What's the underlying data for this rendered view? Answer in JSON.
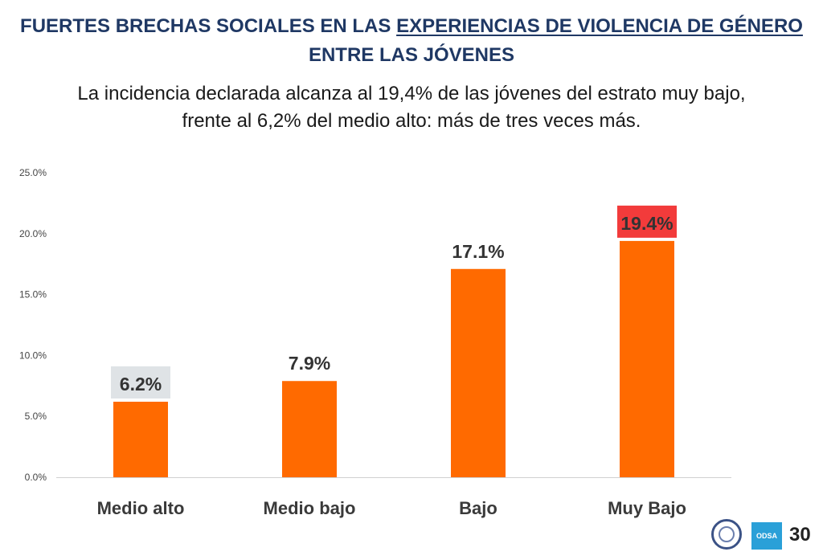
{
  "header": {
    "title_line1_plain": "FUERTES BRECHAS SOCIALES EN LAS ",
    "title_line1_underlined": "EXPERIENCIAS DE VIOLENCIA DE GÉNERO",
    "title_line2": "ENTRE LAS JÓVENES",
    "subtitle_line1": "La incidencia declarada alcanza al 19,4% de las jóvenes del estrato muy bajo,",
    "subtitle_line2": "frente al 6,2% del medio alto: más de tres veces más."
  },
  "footer": {
    "logo2_text": "ODSA",
    "page_number": "30"
  },
  "chart_data": {
    "type": "bar",
    "categories": [
      "Medio alto",
      "Medio bajo",
      "Bajo",
      "Muy Bajo"
    ],
    "values": [
      6.2,
      7.9,
      17.1,
      19.4
    ],
    "data_labels": [
      "6.2%",
      "7.9%",
      "17.1%",
      "19.4%"
    ],
    "label_highlight": [
      "#dfe3e6",
      null,
      null,
      "#f23b3b"
    ],
    "ylim": [
      0,
      25
    ],
    "yticks": [
      0,
      5,
      10,
      15,
      20,
      25
    ],
    "ytick_labels": [
      "0.0%",
      "5.0%",
      "10.0%",
      "15.0%",
      "20.0%",
      "25.0%"
    ],
    "bar_color": "#ff6a00",
    "grid": false
  }
}
